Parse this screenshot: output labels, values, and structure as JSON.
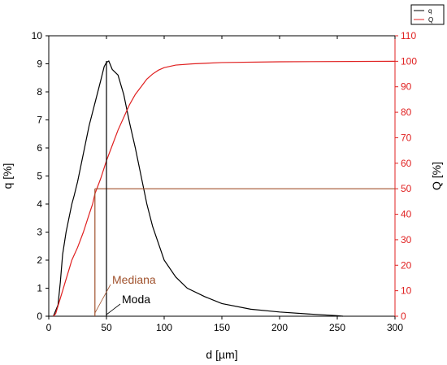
{
  "chart_data": {
    "type": "line",
    "xlabel": "d [µm]",
    "ylabel_left": "q [%]",
    "ylabel_right": "Q [%]",
    "xlim": [
      0,
      300
    ],
    "ylim_left": [
      0,
      10
    ],
    "ylim_right": [
      0,
      110
    ],
    "x_ticks": [
      0,
      50,
      100,
      150,
      200,
      250,
      300
    ],
    "y_left_ticks": [
      0,
      1,
      2,
      3,
      4,
      5,
      6,
      7,
      8,
      9,
      10
    ],
    "y_right_ticks": [
      0,
      10,
      20,
      30,
      40,
      50,
      60,
      70,
      80,
      90,
      100,
      110
    ],
    "grid": false,
    "legend_position": "top-right",
    "series": [
      {
        "name": "q",
        "axis": "left",
        "color": "#000000",
        "points": [
          [
            4,
            0
          ],
          [
            8,
            0.4
          ],
          [
            10,
            1.2
          ],
          [
            12,
            2.2
          ],
          [
            15,
            3.0
          ],
          [
            18,
            3.6
          ],
          [
            20,
            4.0
          ],
          [
            22,
            4.3
          ],
          [
            25,
            4.8
          ],
          [
            30,
            5.8
          ],
          [
            35,
            6.8
          ],
          [
            40,
            7.6
          ],
          [
            45,
            8.4
          ],
          [
            48,
            8.9
          ],
          [
            50,
            9.05
          ],
          [
            52,
            9.1
          ],
          [
            55,
            8.8
          ],
          [
            60,
            8.6
          ],
          [
            65,
            7.9
          ],
          [
            70,
            6.9
          ],
          [
            75,
            6.0
          ],
          [
            80,
            5.0
          ],
          [
            85,
            4.0
          ],
          [
            90,
            3.2
          ],
          [
            95,
            2.6
          ],
          [
            100,
            2.0
          ],
          [
            110,
            1.4
          ],
          [
            120,
            1.0
          ],
          [
            135,
            0.7
          ],
          [
            150,
            0.45
          ],
          [
            175,
            0.25
          ],
          [
            200,
            0.15
          ],
          [
            225,
            0.08
          ],
          [
            250,
            0.02
          ],
          [
            255,
            0
          ]
        ]
      },
      {
        "name": "Q",
        "axis": "right",
        "color": "#e02020",
        "points": [
          [
            4,
            0
          ],
          [
            6,
            1
          ],
          [
            8,
            4
          ],
          [
            10,
            7
          ],
          [
            12,
            10
          ],
          [
            14,
            13
          ],
          [
            16,
            16
          ],
          [
            18,
            19
          ],
          [
            20,
            22
          ],
          [
            25,
            27
          ],
          [
            30,
            33
          ],
          [
            35,
            40
          ],
          [
            38,
            44
          ],
          [
            40,
            48
          ],
          [
            45,
            54
          ],
          [
            50,
            61
          ],
          [
            55,
            67
          ],
          [
            60,
            73
          ],
          [
            65,
            78
          ],
          [
            70,
            83
          ],
          [
            75,
            87
          ],
          [
            80,
            90
          ],
          [
            85,
            93
          ],
          [
            90,
            95
          ],
          [
            95,
            96.5
          ],
          [
            100,
            97.5
          ],
          [
            110,
            98.5
          ],
          [
            125,
            99
          ],
          [
            150,
            99.5
          ],
          [
            200,
            99.8
          ],
          [
            300,
            100
          ]
        ]
      }
    ],
    "reference_lines": [
      {
        "label": "Mediana",
        "x": 40,
        "y_right": 50,
        "color": "#a0522d"
      },
      {
        "label": "Moda",
        "x": 50,
        "color": "#000000"
      }
    ]
  },
  "annotations": {
    "mediana": "Mediana",
    "moda": "Moda"
  },
  "colors": {
    "q_line": "#000000",
    "Q_line": "#e02020",
    "right_axis": "#e02020",
    "median_line": "#a0522d",
    "axis": "#000000"
  }
}
